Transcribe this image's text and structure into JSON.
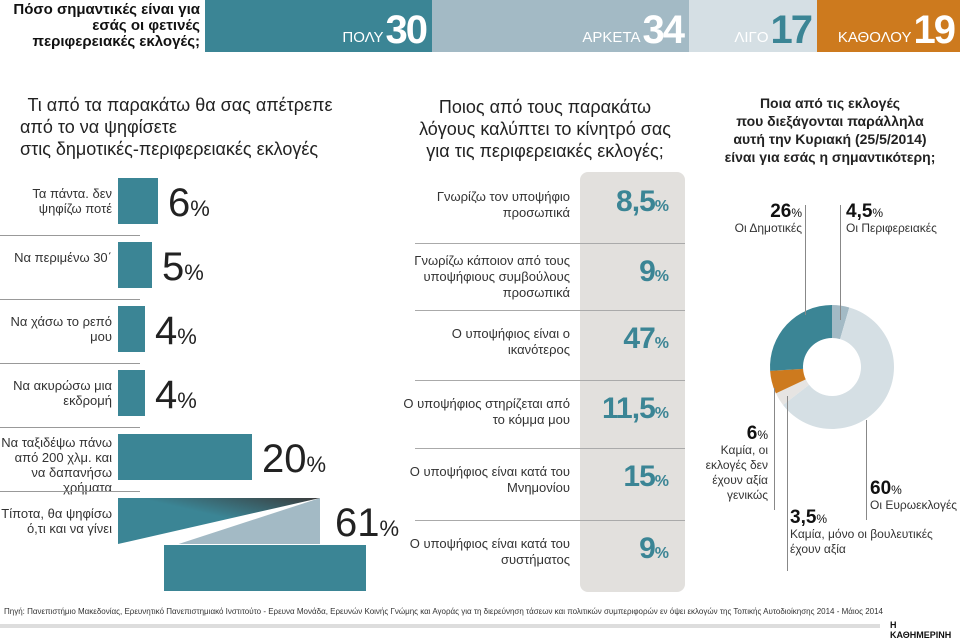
{
  "colors": {
    "teal": "#3b8595",
    "blue_gray": "#a3bac5",
    "light": "#d5dfe4",
    "orange": "#cd7a1e",
    "box": "#e2e0dd"
  },
  "header": {
    "title": "Πόσο σημαντικές είναι για εσάς οι φετινές περιφερειακές εκλογές;",
    "segments": [
      {
        "label": "ΠΟΛΥ",
        "value": "30"
      },
      {
        "label": "ΑΡΚΕΤΑ",
        "value": "34"
      },
      {
        "label": "ΛΙΓΟ",
        "value": "17"
      },
      {
        "label": "ΚΑΘΟΛΟΥ",
        "value": "19"
      }
    ]
  },
  "chart_data": [
    {
      "type": "bar",
      "title": "Πόσο σημαντικές είναι για εσάς οι φετινές περιφερειακές εκλογές;",
      "categories": [
        "ΠΟΛΥ",
        "ΑΡΚΕΤΑ",
        "ΛΙΓΟ",
        "ΚΑΘΟΛΟΥ"
      ],
      "values": [
        30,
        34,
        17,
        19
      ],
      "orientation": "stacked-horizontal"
    },
    {
      "type": "bar",
      "title": "Τι από τα παρακάτω θα σας απέτρεπε από το να ψηφίσετε στις δημοτικές-περιφερειακές εκλογές",
      "categories": [
        "Τα πάντα. δεν ψηφίζω ποτέ",
        "Να περιμένω 30΄",
        "Να χάσω το ρεπό μου",
        "Να ακυρώσω μια εκδρομή",
        "Να ταξιδέψω πάνω από 200 χλμ. και να δαπανήσω χρήματα",
        "Τίποτα, θα ψηφίσω ό,τι και να γίνει"
      ],
      "values": [
        6,
        5,
        4,
        4,
        20,
        61
      ],
      "unit": "%"
    },
    {
      "type": "table",
      "title": "Ποιος από τους παρακάτω λόγους καλύπτει το κίνητρό σας για τις περιφερειακές εκλογές;",
      "categories": [
        "Γνωρίζω τον υποψήφιο προσωπικά",
        "Γνωρίζω κάποιον από τους υποψήφιους συμβούλους προσωπικά",
        "Ο υποψήφιος είναι ο ικανότερος",
        "Ο υποψήφιος στηρίζεται από το κόμμα μου",
        "Ο υποψήφιος είναι κατά του Μνημονίου",
        "Ο υποψήφιος είναι κατά του συστήματος"
      ],
      "values": [
        "8,5",
        "9",
        "47",
        "11,5",
        "15",
        "9"
      ],
      "unit": "%"
    },
    {
      "type": "pie",
      "title": "Ποια από τις εκλογές που διεξάγονται παράλληλα αυτή την Κυριακή (25/5/2014) είναι για εσάς η σημαντικότερη;",
      "slices": [
        {
          "label": "Οι Περιφερειακές",
          "value": 4.5,
          "text": "4,5",
          "color": "#a3bac5"
        },
        {
          "label": "Οι Ευρωεκλογές",
          "value": 60,
          "text": "60",
          "color": "#d5dfe4"
        },
        {
          "label": "Καμία, μόνο οι βουλευτικές έχουν αξία",
          "value": 3.5,
          "text": "3,5",
          "color": "#e6e4e2"
        },
        {
          "label": "Καμία, οι εκλογές δεν έχουν αξία γενικώς",
          "value": 6,
          "text": "6",
          "color": "#cd7a1e"
        },
        {
          "label": "Οι Δημοτικές",
          "value": 26,
          "text": "26",
          "color": "#3b8595"
        }
      ],
      "donut": true
    }
  ],
  "left": {
    "title_lines": [
      "Τι από τα παρακάτω θα σας απέτρεπε",
      "από το να ψηφίσετε",
      "στις δημοτικές-περιφερειακές εκλογές"
    ]
  },
  "middle": {
    "title_lines": [
      "Ποιος από τους παρακάτω",
      "λόγους καλύπτει το κίνητρό σας",
      "για τις περιφερειακές εκλογές;"
    ]
  },
  "right": {
    "title_lines": [
      "Ποια από τις εκλογές",
      "που διεξάγονται παράλληλα",
      "αυτή την Κυριακή (25/5/2014)",
      "είναι για εσάς η σημαντικότερη;"
    ]
  },
  "percent": "%",
  "footer": {
    "source": "Πηγή: Πανεπιστήμιο Μακεδονίας, Ερευνητικό Πανεπιστημιακό Ινστιτούτο - Ερευνα Μονάδα, Ερευνών Κοινής Γνώμης και Αγοράς για τη διερεύνηση τάσεων και πολιτικών συμπεριφορών εν όψει εκλογών της Τοπικής Αυτοδιοίκησης 2014 - Μάιος 2014",
    "brand": "Η ΚΑΘΗΜΕΡΙΝΗ"
  }
}
